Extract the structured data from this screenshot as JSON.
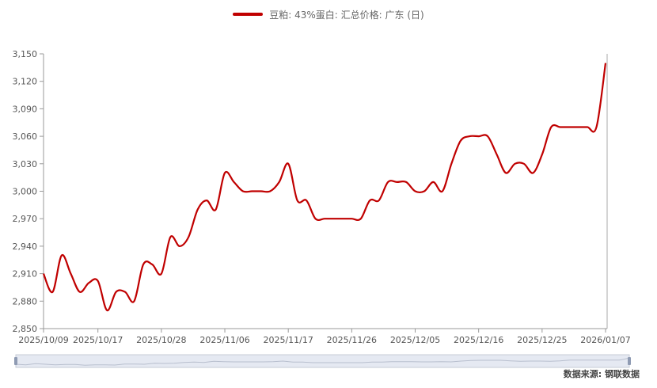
{
  "legend": {
    "label": "豆粕: 43%蛋白: 汇总价格: 广东 (日)"
  },
  "source": "数据来源: 钢联数据",
  "colors": {
    "series": "#c00000",
    "axis": "#999999",
    "slider_fill": "#e5e9f2",
    "slider_border": "#c6cbd6"
  },
  "chart_data": {
    "type": "line",
    "ylim": [
      2850,
      3150
    ],
    "yticks": [
      2850,
      2880,
      2910,
      2940,
      2970,
      3000,
      3030,
      3060,
      3090,
      3120,
      3150
    ],
    "ytick_labels": [
      "2,850",
      "2,880",
      "2,910",
      "2,940",
      "2,970",
      "3,000",
      "3,030",
      "3,060",
      "3,090",
      "3,120",
      "3,150"
    ],
    "xticks": [
      "2025/10/09",
      "2025/10/17",
      "2025/10/28",
      "2025/11/06",
      "2025/11/17",
      "2025/11/26",
      "2025/12/05",
      "2025/12/16",
      "2025/12/25",
      "2026/01/07"
    ],
    "series": [
      {
        "color": "#c00000",
        "x": [
          "2025/10/09",
          "2025/10/10",
          "2025/10/13",
          "2025/10/14",
          "2025/10/15",
          "2025/10/16",
          "2025/10/17",
          "2025/10/20",
          "2025/10/21",
          "2025/10/22",
          "2025/10/23",
          "2025/10/24",
          "2025/10/27",
          "2025/10/28",
          "2025/10/29",
          "2025/10/30",
          "2025/10/31",
          "2025/11/03",
          "2025/11/04",
          "2025/11/05",
          "2025/11/06",
          "2025/11/07",
          "2025/11/10",
          "2025/11/11",
          "2025/11/12",
          "2025/11/13",
          "2025/11/14",
          "2025/11/17",
          "2025/11/18",
          "2025/11/19",
          "2025/11/20",
          "2025/11/21",
          "2025/11/24",
          "2025/11/25",
          "2025/11/26",
          "2025/11/27",
          "2025/11/28",
          "2025/12/01",
          "2025/12/02",
          "2025/12/03",
          "2025/12/04",
          "2025/12/05",
          "2025/12/08",
          "2025/12/09",
          "2025/12/10",
          "2025/12/11",
          "2025/12/12",
          "2025/12/15",
          "2025/12/16",
          "2025/12/17",
          "2025/12/18",
          "2025/12/19",
          "2025/12/22",
          "2025/12/23",
          "2025/12/24",
          "2025/12/25",
          "2025/12/26",
          "2025/12/29",
          "2025/12/30",
          "2025/12/31",
          "2026/01/05",
          "2026/01/06",
          "2026/01/07"
        ],
        "values": [
          2910,
          2890,
          2930,
          2910,
          2890,
          2900,
          2902,
          2870,
          2890,
          2890,
          2880,
          2920,
          2920,
          2910,
          2950,
          2940,
          2950,
          2980,
          2990,
          2980,
          3020,
          3010,
          3000,
          3000,
          3000,
          3000,
          3010,
          3030,
          2990,
          2990,
          2970,
          2970,
          2970,
          2970,
          2970,
          2970,
          2990,
          2990,
          3010,
          3010,
          3010,
          3000,
          3000,
          3010,
          3000,
          3030,
          3055,
          3060,
          3060,
          3060,
          3040,
          3020,
          3030,
          3030,
          3020,
          3040,
          3070,
          3070,
          3070,
          3070,
          3070,
          3070,
          3140
        ]
      }
    ]
  }
}
